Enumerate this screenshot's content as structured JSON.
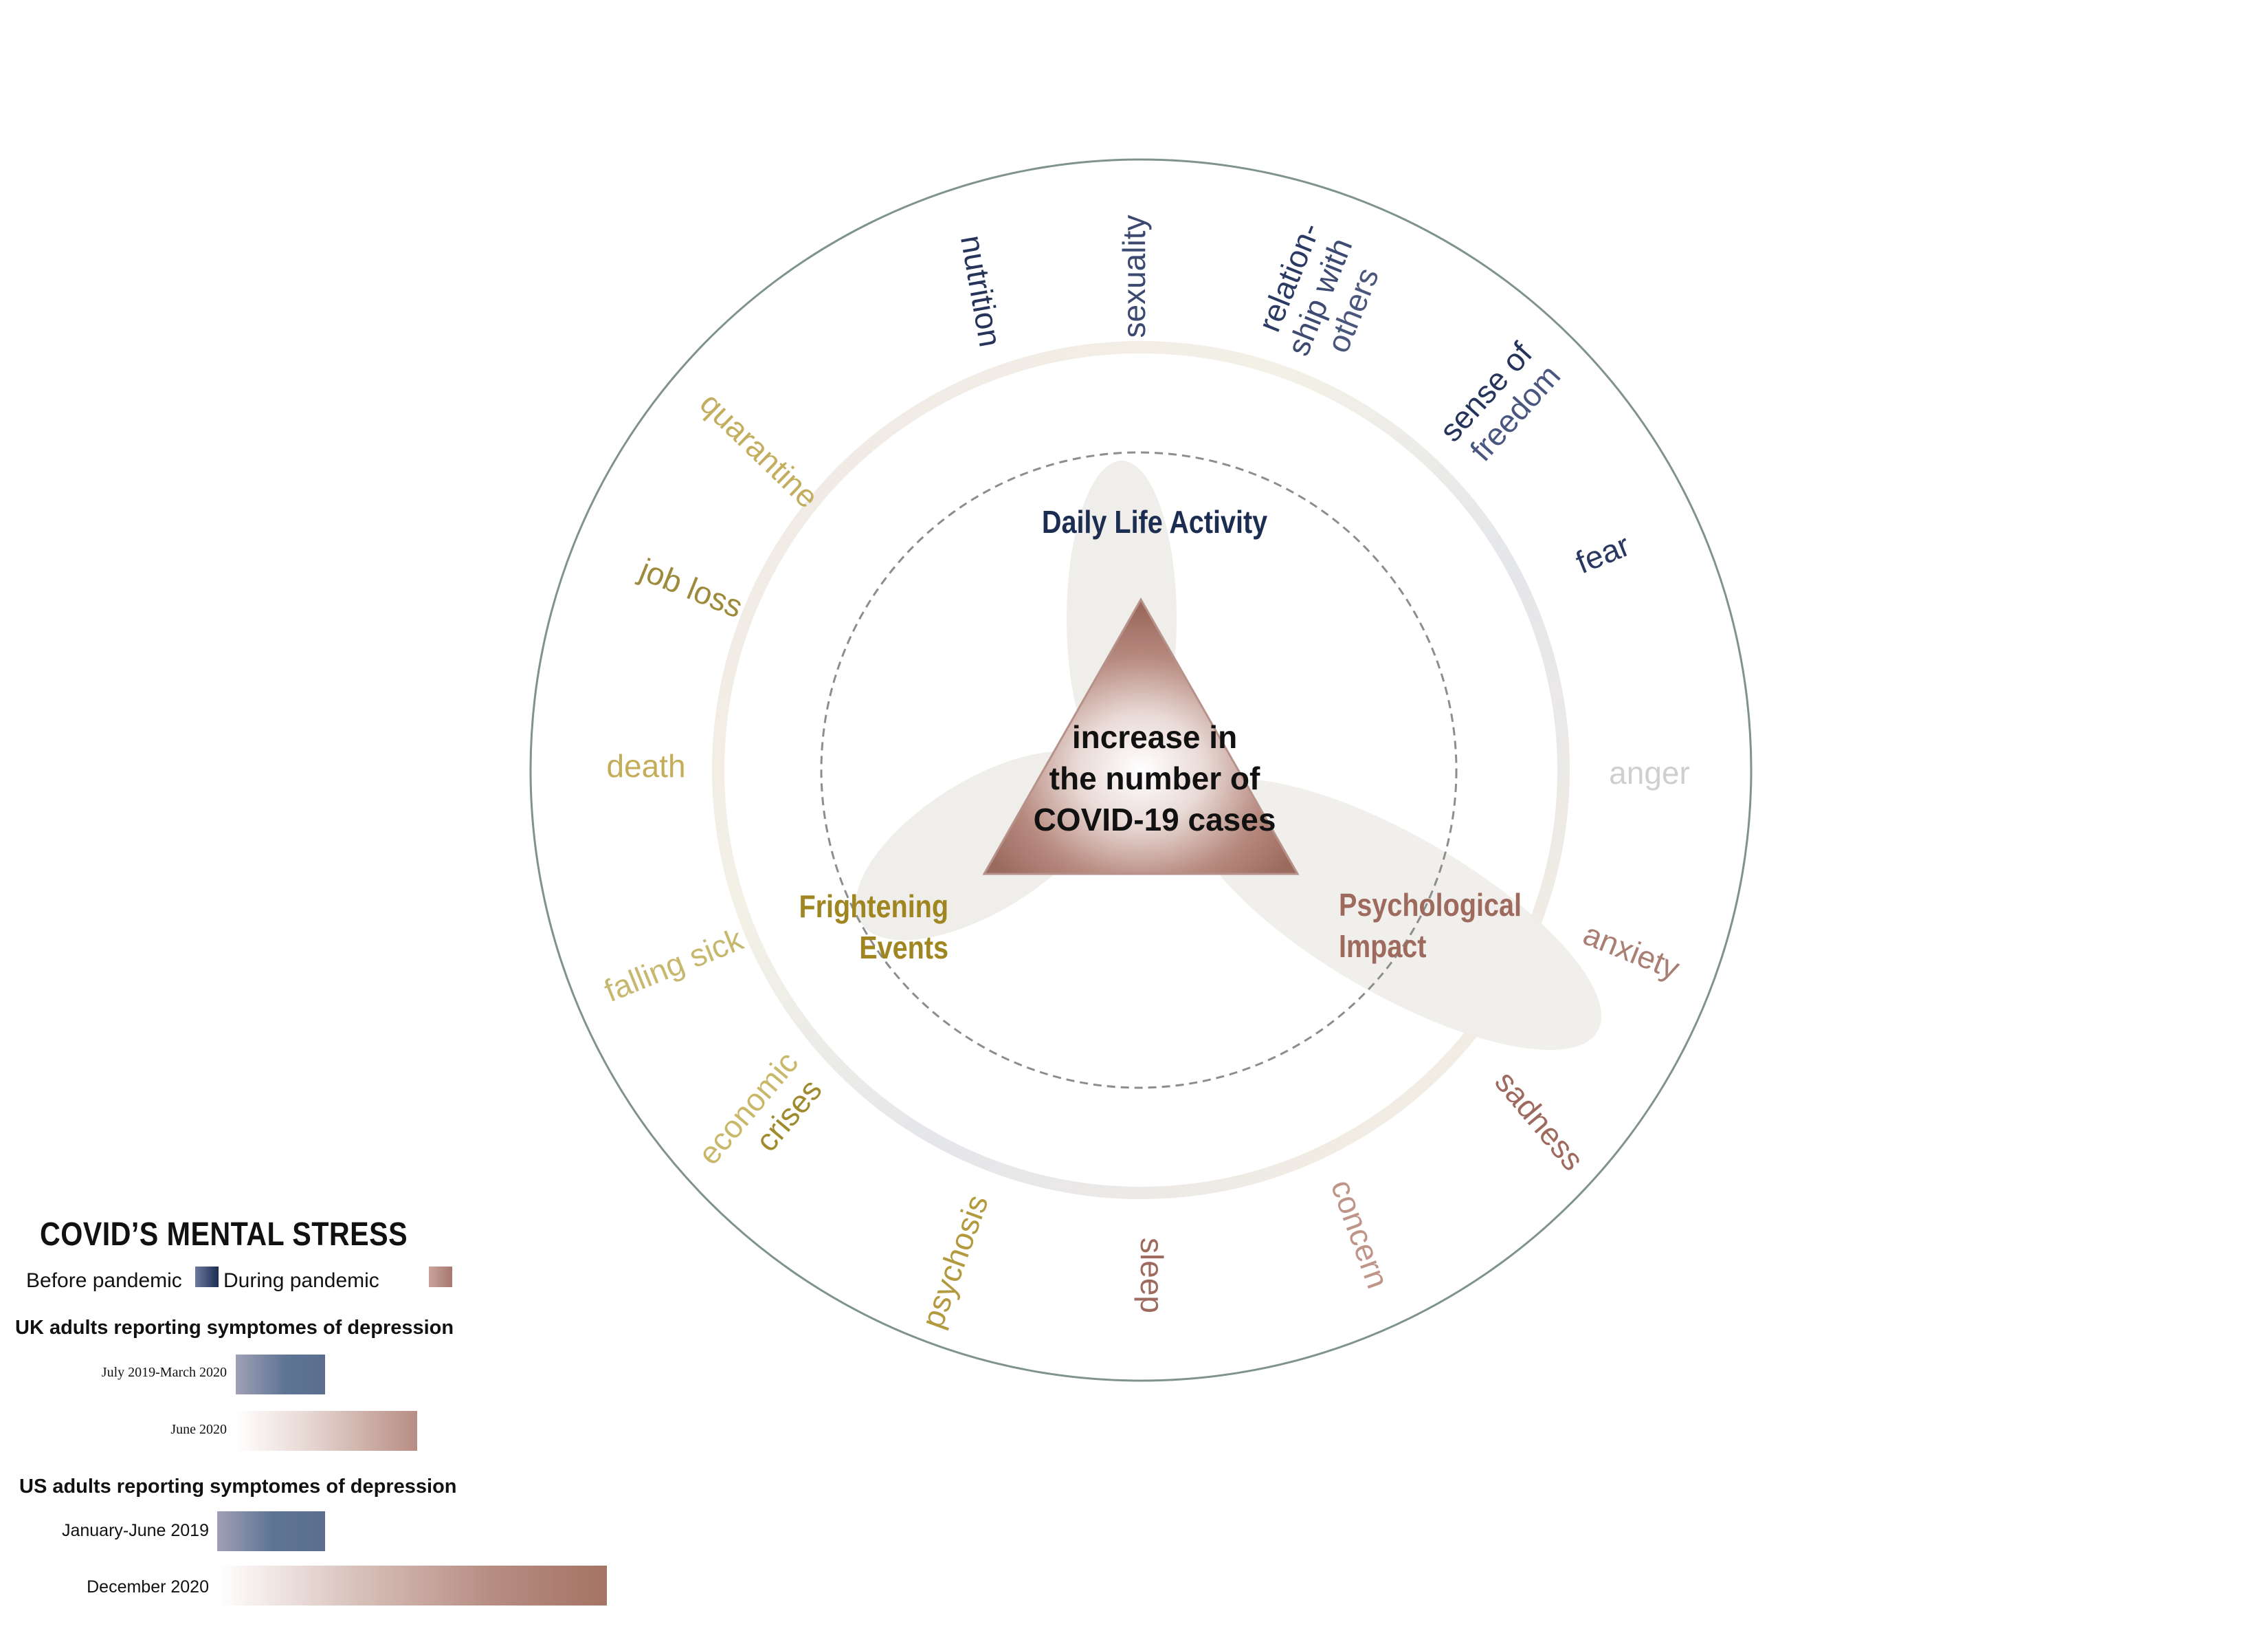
{
  "center": {
    "lines": [
      "increase in",
      "the number of",
      "COVID-19 cases"
    ]
  },
  "categories": {
    "daily": "Daily Life Activity",
    "frightening": [
      "Frightening",
      "Events"
    ],
    "psychological": [
      "Psychological",
      "Impact"
    ]
  },
  "ring_labels": {
    "nutrition": "nutrition",
    "sexuality": "sexuality",
    "relationship": [
      "relation-",
      "ship with",
      "others"
    ],
    "sense_of_freedom": [
      "sense of",
      "freedom"
    ],
    "fear": "fear",
    "anger": "anger",
    "anxiety": "anxiety",
    "sadness": "sadness",
    "concern": "concern",
    "sleep": "sleep",
    "psychosis": "psychosis",
    "economic_crises": [
      "economic",
      "crises"
    ],
    "falling_sick": "falling sick",
    "death": "death",
    "job_loss": "job loss",
    "quarantine": "quarantine"
  },
  "panel": {
    "title": "COVID’S MENTAL STRESS",
    "legend_before": "Before pandemic",
    "legend_during": "During pandemic",
    "uk_heading": "UK adults reporting symptomes of depression",
    "uk_bars": [
      {
        "label": "July 2019-March 2020",
        "period": "before",
        "value": 1.0
      },
      {
        "label": "June 2020",
        "period": "during",
        "value": 2.03
      }
    ],
    "us_heading": "US adults reporting symptomes of depression",
    "us_bars": [
      {
        "label": "January-June 2019",
        "period": "before",
        "value": 1.0
      },
      {
        "label": "December 2020",
        "period": "during",
        "value": 3.6
      }
    ]
  },
  "colors": {
    "navy": "#1c2d52",
    "gold": "#a08620",
    "rose": "#9e6a5e",
    "outer_circle": "#7f938c",
    "blob": "#efeeea"
  }
}
